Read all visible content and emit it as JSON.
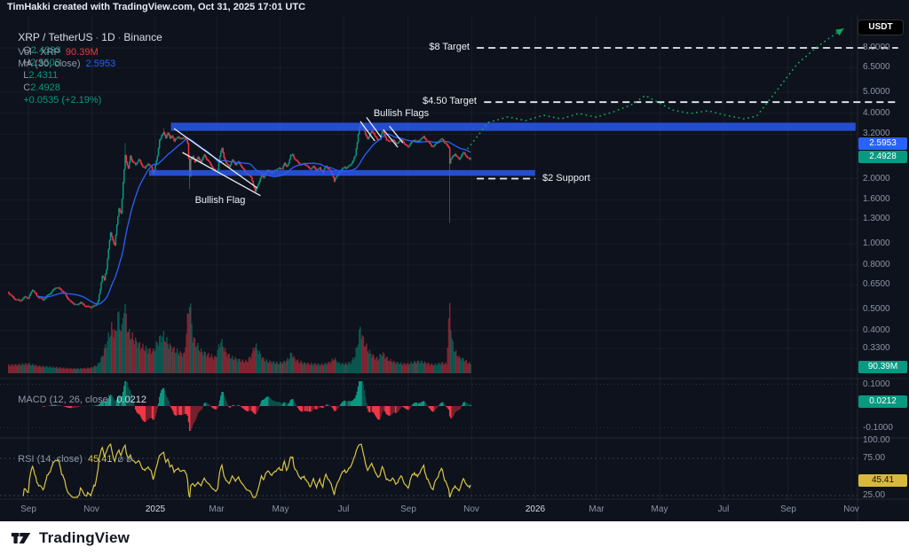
{
  "header": {
    "title": "TimHakki created with TradingView.com, Oct 31, 2025 17:01 UTC"
  },
  "legend": {
    "symbol": "XRP / TetherUS",
    "separator": " · ",
    "interval": "1D",
    "exchange": "Binance",
    "ohlc": [
      {
        "label": "O",
        "value": "2.4393"
      },
      {
        "label": "H",
        "value": "2.5505"
      },
      {
        "label": "L",
        "value": "2.4311"
      },
      {
        "label": "C",
        "value": "2.4928"
      }
    ],
    "change": "+0.0535 (+2.19%)",
    "vol_label": "Vol · XRP",
    "vol_value": "90.39M",
    "ma_label": "MA (30, close)",
    "ma_value": "2.5953"
  },
  "indicators": {
    "macd": {
      "label": "MACD (12, 26, close)",
      "value": "0.0212"
    },
    "rsi": {
      "label": "RSI (14, close)",
      "value": "45.41",
      "hidden": "⌀ ⌀"
    }
  },
  "currency_button": "USDT",
  "badges": {
    "ma": "2.5953",
    "price": "2.4928",
    "volume": "90.39M",
    "macd": "0.0212",
    "rsi": "45.41"
  },
  "footer": {
    "brand": "TradingView"
  },
  "colors": {
    "bg": "#0d121c",
    "up": "#089981",
    "down": "#f23645",
    "up_faded": "rgba(8,153,129,0.45)",
    "down_faded": "rgba(242,54,69,0.45)",
    "ma": "#2962ff",
    "rsi": "#d9c545",
    "rsi_badge": "#d9b93c",
    "band": "#2b5cf5",
    "projection": "#14a05a",
    "drawing_white": "#e8ecf4"
  },
  "chart_data": {
    "type": "candlestick",
    "symbol": "XRP/USDT",
    "exchange": "Binance",
    "interval": "1D",
    "scale": "log",
    "x_axis": {
      "ticks": [
        {
          "label": "Sep",
          "day": 0
        },
        {
          "label": "Nov",
          "day": 61
        },
        {
          "label": "2025",
          "day": 122,
          "major": true
        },
        {
          "label": "Mar",
          "day": 181
        },
        {
          "label": "May",
          "day": 242
        },
        {
          "label": "Jul",
          "day": 303
        },
        {
          "label": "Sep",
          "day": 365
        },
        {
          "label": "Nov",
          "day": 426
        },
        {
          "label": "2026",
          "day": 487,
          "major": true
        },
        {
          "label": "Mar",
          "day": 546
        },
        {
          "label": "May",
          "day": 607
        },
        {
          "label": "Jul",
          "day": 668
        },
        {
          "label": "Sep",
          "day": 730
        },
        {
          "label": "Nov",
          "day": 791
        }
      ]
    },
    "y_axis": {
      "labels": [
        "8.0000",
        "6.5000",
        "5.0000",
        "4.0000",
        "3.2000",
        "2.0000",
        "1.6000",
        "1.3000",
        "1.0000",
        "0.8000",
        "0.6500",
        "0.5000",
        "0.4000",
        "0.3300"
      ],
      "values": [
        8.0,
        6.5,
        5.0,
        4.0,
        3.2,
        2.0,
        1.6,
        1.3,
        1.0,
        0.8,
        0.65,
        0.5,
        0.4,
        0.33
      ]
    },
    "macd_axis": {
      "labels": [
        "0.1000",
        "-0.1000"
      ],
      "values": [
        0.1,
        -0.1
      ]
    },
    "rsi_axis": {
      "labels": [
        "100.00",
        "75.00",
        "25.00"
      ],
      "values": [
        100,
        75,
        25
      ],
      "dashed_levels": [
        75,
        25
      ]
    },
    "price_anchors": [
      [
        -20,
        0.6
      ],
      [
        -14,
        0.56
      ],
      [
        -8,
        0.55
      ],
      [
        -3,
        0.57
      ],
      [
        0,
        0.56
      ],
      [
        4,
        0.62
      ],
      [
        8,
        0.58
      ],
      [
        14,
        0.55
      ],
      [
        20,
        0.59
      ],
      [
        26,
        0.63
      ],
      [
        30,
        0.62
      ],
      [
        34,
        0.6
      ],
      [
        40,
        0.545
      ],
      [
        46,
        0.52
      ],
      [
        50,
        0.54
      ],
      [
        56,
        0.515
      ],
      [
        61,
        0.51
      ],
      [
        64,
        0.52
      ],
      [
        67,
        0.55
      ],
      [
        69,
        0.62
      ],
      [
        71,
        0.72
      ],
      [
        73,
        0.68
      ],
      [
        75,
        0.76
      ],
      [
        77,
        0.95
      ],
      [
        79,
        1.12
      ],
      [
        81,
        1.05
      ],
      [
        83,
        0.99
      ],
      [
        85,
        1.22
      ],
      [
        87,
        1.46
      ],
      [
        89,
        1.38
      ],
      [
        90,
        1.6
      ],
      [
        91,
        1.9
      ],
      [
        92,
        2.2
      ],
      [
        93,
        2.58
      ],
      [
        94,
        2.38
      ],
      [
        96,
        2.22
      ],
      [
        98,
        2.56
      ],
      [
        100,
        2.4
      ],
      [
        103,
        2.32
      ],
      [
        106,
        2.44
      ],
      [
        109,
        2.3
      ],
      [
        112,
        2.24
      ],
      [
        115,
        2.36
      ],
      [
        118,
        2.26
      ],
      [
        120,
        2.1
      ],
      [
        122,
        2.3
      ],
      [
        124,
        2.52
      ],
      [
        126,
        3.02
      ],
      [
        128,
        3.16
      ],
      [
        130,
        3.28
      ],
      [
        132,
        3.1
      ],
      [
        134,
        3.24
      ],
      [
        136,
        3.06
      ],
      [
        138,
        3.16
      ],
      [
        140,
        2.96
      ],
      [
        142,
        3.08
      ],
      [
        144,
        3.14
      ],
      [
        146,
        3.04
      ],
      [
        149,
        3.1
      ],
      [
        152,
        2.98
      ],
      [
        153,
        2.9
      ],
      [
        154,
        2.48
      ],
      [
        155,
        2.06
      ],
      [
        156,
        2.44
      ],
      [
        158,
        2.54
      ],
      [
        160,
        2.42
      ],
      [
        163,
        2.5
      ],
      [
        166,
        2.38
      ],
      [
        169,
        2.56
      ],
      [
        172,
        2.44
      ],
      [
        175,
        2.34
      ],
      [
        178,
        2.22
      ],
      [
        180,
        2.14
      ],
      [
        182,
        2.2
      ],
      [
        184,
        2.52
      ],
      [
        186,
        2.76
      ],
      [
        188,
        2.52
      ],
      [
        190,
        2.36
      ],
      [
        193,
        2.28
      ],
      [
        196,
        2.42
      ],
      [
        199,
        2.32
      ],
      [
        202,
        2.38
      ],
      [
        205,
        2.28
      ],
      [
        208,
        2.16
      ],
      [
        211,
        2.08
      ],
      [
        214,
        2.02
      ],
      [
        216,
        1.88
      ],
      [
        218,
        1.74
      ],
      [
        220,
        1.86
      ],
      [
        222,
        1.96
      ],
      [
        224,
        2.08
      ],
      [
        226,
        2.02
      ],
      [
        228,
        2.12
      ],
      [
        231,
        2.18
      ],
      [
        234,
        2.12
      ],
      [
        237,
        2.2
      ],
      [
        240,
        2.22
      ],
      [
        244,
        2.22
      ],
      [
        246,
        2.34
      ],
      [
        248,
        2.28
      ],
      [
        250,
        2.36
      ],
      [
        252,
        2.56
      ],
      [
        254,
        2.6
      ],
      [
        256,
        2.44
      ],
      [
        259,
        2.38
      ],
      [
        262,
        2.3
      ],
      [
        265,
        2.36
      ],
      [
        268,
        2.28
      ],
      [
        271,
        2.22
      ],
      [
        274,
        2.26
      ],
      [
        277,
        2.18
      ],
      [
        280,
        2.24
      ],
      [
        283,
        2.16
      ],
      [
        286,
        2.28
      ],
      [
        289,
        2.2
      ],
      [
        292,
        2.1
      ],
      [
        294,
        1.96
      ],
      [
        296,
        2.04
      ],
      [
        298,
        2.12
      ],
      [
        300,
        2.18
      ],
      [
        302,
        2.22
      ],
      [
        304,
        2.26
      ],
      [
        306,
        2.22
      ],
      [
        308,
        2.28
      ],
      [
        310,
        2.34
      ],
      [
        312,
        2.42
      ],
      [
        314,
        2.56
      ],
      [
        316,
        2.96
      ],
      [
        318,
        3.42
      ],
      [
        320,
        3.56
      ],
      [
        322,
        3.4
      ],
      [
        324,
        3.18
      ],
      [
        326,
        3.06
      ],
      [
        328,
        3.2
      ],
      [
        330,
        3.32
      ],
      [
        332,
        3.24
      ],
      [
        334,
        3.08
      ],
      [
        336,
        2.98
      ],
      [
        338,
        3.06
      ],
      [
        340,
        3.3
      ],
      [
        342,
        3.22
      ],
      [
        344,
        3.04
      ],
      [
        347,
        2.96
      ],
      [
        350,
        3.02
      ],
      [
        353,
        2.88
      ],
      [
        356,
        2.96
      ],
      [
        359,
        3.04
      ],
      [
        362,
        2.86
      ],
      [
        365,
        2.8
      ],
      [
        368,
        2.92
      ],
      [
        371,
        3.02
      ],
      [
        374,
        2.96
      ],
      [
        377,
        3.06
      ],
      [
        380,
        3.1
      ],
      [
        383,
        2.98
      ],
      [
        386,
        2.88
      ],
      [
        389,
        2.82
      ],
      [
        392,
        2.92
      ],
      [
        394,
        2.96
      ],
      [
        396,
        3.0
      ],
      [
        398,
        3.04
      ],
      [
        400,
        2.92
      ],
      [
        402,
        2.86
      ],
      [
        404,
        2.8
      ],
      [
        405,
        2.38
      ],
      [
        406,
        2.46
      ],
      [
        408,
        2.54
      ],
      [
        410,
        2.6
      ],
      [
        412,
        2.5
      ],
      [
        414,
        2.44
      ],
      [
        416,
        2.56
      ],
      [
        418,
        2.64
      ],
      [
        420,
        2.58
      ],
      [
        422,
        2.52
      ],
      [
        424,
        2.45
      ],
      [
        425,
        2.4928
      ]
    ],
    "wick_overrides": [
      {
        "day": 93,
        "high": 2.92
      },
      {
        "day": 130,
        "high": 3.42
      },
      {
        "day": 155,
        "low": 1.79
      },
      {
        "day": 320,
        "high": 3.66
      },
      {
        "day": 405,
        "low": 1.25
      }
    ],
    "volume_anchors": [
      [
        -20,
        10
      ],
      [
        0,
        12
      ],
      [
        10,
        9
      ],
      [
        20,
        8
      ],
      [
        30,
        7
      ],
      [
        40,
        6
      ],
      [
        50,
        6
      ],
      [
        60,
        7
      ],
      [
        66,
        10
      ],
      [
        70,
        18
      ],
      [
        76,
        42
      ],
      [
        80,
        58
      ],
      [
        84,
        50
      ],
      [
        86,
        78
      ],
      [
        88,
        62
      ],
      [
        90,
        55
      ],
      [
        92,
        90
      ],
      [
        94,
        72
      ],
      [
        96,
        52
      ],
      [
        100,
        46
      ],
      [
        105,
        38
      ],
      [
        110,
        33
      ],
      [
        115,
        30
      ],
      [
        120,
        28
      ],
      [
        126,
        44
      ],
      [
        130,
        48
      ],
      [
        135,
        36
      ],
      [
        140,
        30
      ],
      [
        145,
        26
      ],
      [
        150,
        24
      ],
      [
        155,
        96
      ],
      [
        158,
        46
      ],
      [
        162,
        36
      ],
      [
        166,
        28
      ],
      [
        170,
        25
      ],
      [
        175,
        22
      ],
      [
        180,
        20
      ],
      [
        185,
        42
      ],
      [
        190,
        26
      ],
      [
        195,
        20
      ],
      [
        200,
        18
      ],
      [
        205,
        16
      ],
      [
        210,
        15
      ],
      [
        214,
        22
      ],
      [
        218,
        36
      ],
      [
        222,
        26
      ],
      [
        226,
        18
      ],
      [
        230,
        15
      ],
      [
        235,
        14
      ],
      [
        240,
        13
      ],
      [
        245,
        14
      ],
      [
        250,
        18
      ],
      [
        253,
        26
      ],
      [
        256,
        18
      ],
      [
        260,
        15
      ],
      [
        265,
        13
      ],
      [
        270,
        12
      ],
      [
        275,
        12
      ],
      [
        280,
        11
      ],
      [
        285,
        12
      ],
      [
        290,
        14
      ],
      [
        294,
        19
      ],
      [
        298,
        13
      ],
      [
        302,
        12
      ],
      [
        306,
        12
      ],
      [
        310,
        14
      ],
      [
        314,
        22
      ],
      [
        317,
        42
      ],
      [
        319,
        58
      ],
      [
        321,
        46
      ],
      [
        324,
        36
      ],
      [
        327,
        28
      ],
      [
        330,
        24
      ],
      [
        333,
        20
      ],
      [
        336,
        18
      ],
      [
        340,
        26
      ],
      [
        344,
        20
      ],
      [
        348,
        16
      ],
      [
        352,
        14
      ],
      [
        356,
        13
      ],
      [
        360,
        12
      ],
      [
        365,
        12
      ],
      [
        370,
        14
      ],
      [
        375,
        15
      ],
      [
        380,
        14
      ],
      [
        385,
        12
      ],
      [
        390,
        11
      ],
      [
        394,
        12
      ],
      [
        398,
        13
      ],
      [
        402,
        12
      ],
      [
        405,
        88
      ],
      [
        407,
        42
      ],
      [
        410,
        28
      ],
      [
        414,
        20
      ],
      [
        418,
        18
      ],
      [
        422,
        14
      ],
      [
        425,
        12
      ]
    ],
    "moving_average": {
      "period": 30,
      "source": "close"
    },
    "macd_params": {
      "fast": 12,
      "slow": 26,
      "signal": 9
    },
    "rsi_params": {
      "period": 14
    },
    "annotations": {
      "bands": [
        {
          "name": "resistance-zone",
          "price_top": 3.62,
          "price_bottom": 3.32,
          "day_start": 137,
          "day_end": 795
        },
        {
          "name": "support-zone",
          "price_top": 2.19,
          "price_bottom": 2.06,
          "day_start": 116,
          "day_end": 487
        }
      ],
      "target_lines": [
        {
          "label": "$8 Target",
          "price": 8.0,
          "day_start": 431,
          "day_end": 836,
          "label_side": "left"
        },
        {
          "label": "$4.50 Target",
          "price": 4.5,
          "day_start": 438,
          "day_end": 836,
          "label_side": "left"
        },
        {
          "label": "$2 Support",
          "price": 2.0,
          "day_start": 431,
          "day_end": 487,
          "label_side": "right"
        }
      ],
      "flag_labels": [
        {
          "text": "Bullish Flags",
          "day": 358,
          "price": 3.95
        },
        {
          "text": "Bullish Flag",
          "day": 184,
          "price": 1.58
        }
      ],
      "flag_lines": [
        [
          140,
          3.4,
          220,
          1.81
        ],
        [
          148,
          2.64,
          223,
          1.67
        ],
        [
          319,
          3.67,
          333,
          2.98
        ],
        [
          325,
          3.83,
          339,
          3.1
        ],
        [
          341,
          3.37,
          355,
          2.79
        ],
        [
          347,
          3.49,
          360,
          2.92
        ]
      ],
      "projection": {
        "points": [
          [
            422,
            2.74
          ],
          [
            442,
            3.63
          ],
          [
            461,
            3.85
          ],
          [
            478,
            3.7
          ],
          [
            495,
            3.92
          ],
          [
            512,
            3.77
          ],
          [
            529,
            3.99
          ],
          [
            546,
            3.84
          ],
          [
            563,
            4.07
          ],
          [
            580,
            4.39
          ],
          [
            593,
            4.83
          ],
          [
            606,
            4.47
          ],
          [
            619,
            4.14
          ],
          [
            636,
            3.99
          ],
          [
            653,
            4.11
          ],
          [
            670,
            3.92
          ],
          [
            688,
            3.77
          ],
          [
            700,
            3.88
          ],
          [
            713,
            4.65
          ],
          [
            726,
            5.6
          ],
          [
            739,
            6.75
          ],
          [
            756,
            7.93
          ],
          [
            771,
            8.96
          ],
          [
            784,
            9.84
          ]
        ]
      }
    }
  }
}
